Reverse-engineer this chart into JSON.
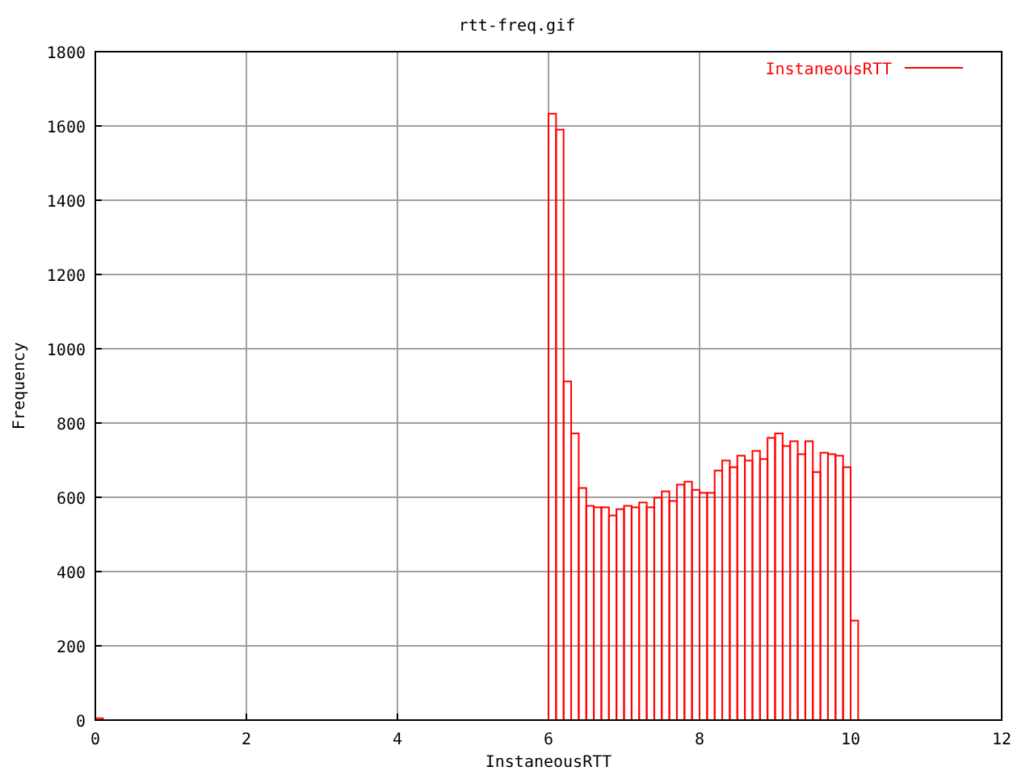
{
  "chart_data": {
    "type": "histogram",
    "title": "rtt-freq.gif",
    "xlabel": "InstaneousRTT",
    "ylabel": "Frequency",
    "bins": [
      0,
      0.1,
      6.0,
      6.1,
      6.2,
      6.3,
      6.4,
      6.5,
      6.6,
      6.7,
      6.8,
      6.9,
      7.0,
      7.1,
      7.2,
      7.3,
      7.4,
      7.5,
      7.6,
      7.7,
      7.8,
      7.9,
      8.0,
      8.1,
      8.2,
      8.3,
      8.4,
      8.5,
      8.6,
      8.7,
      8.8,
      8.9,
      9.0,
      9.1,
      9.2,
      9.3,
      9.4,
      9.5,
      9.6,
      9.7,
      9.8,
      9.9,
      10.0,
      10.1
    ],
    "series": [
      {
        "name": "InstaneousRTT",
        "color": "#ff0000",
        "values": [
          5,
          0,
          1633,
          1590,
          912,
          772,
          625,
          577,
          573,
          573,
          551,
          568,
          577,
          573,
          586,
          573,
          599,
          616,
          590,
          634,
          642,
          620,
          612,
          612,
          672,
          699,
          681,
          712,
          699,
          725,
          703,
          760,
          772,
          738,
          751,
          716,
          751,
          668,
          720,
          716,
          712,
          681,
          268
        ]
      }
    ],
    "xlim": [
      0,
      12
    ],
    "xticks": [
      0,
      2,
      4,
      6,
      8,
      10,
      12
    ],
    "ylim": [
      0,
      1800
    ],
    "yticks": [
      0,
      200,
      400,
      600,
      800,
      1000,
      1200,
      1400,
      1600,
      1800
    ],
    "grid": true,
    "legend": "top right"
  }
}
